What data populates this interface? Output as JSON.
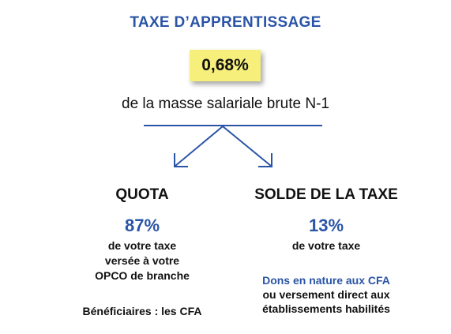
{
  "title": "TAXE D’APPRENTISSAGE",
  "rate": "0,68%",
  "base_label": "de la masse salariale brute N-1",
  "quota": {
    "heading": "QUOTA",
    "percent": "87%",
    "desc_lines": [
      "de votre taxe",
      "versée à votre",
      "OPCO de branche"
    ],
    "beneficiaries": "Bénéficiaires : les CFA"
  },
  "solde": {
    "heading": "SOLDE DE LA TAXE",
    "percent": "13%",
    "desc": "de votre taxe",
    "highlight": "Dons en nature aux CFA",
    "rest_lines": [
      "ou versement direct aux",
      "établissements habilités"
    ]
  },
  "colors": {
    "accent_blue": "#2a54a6",
    "highlight_yellow": "#f6ef7b",
    "text": "#111111"
  }
}
